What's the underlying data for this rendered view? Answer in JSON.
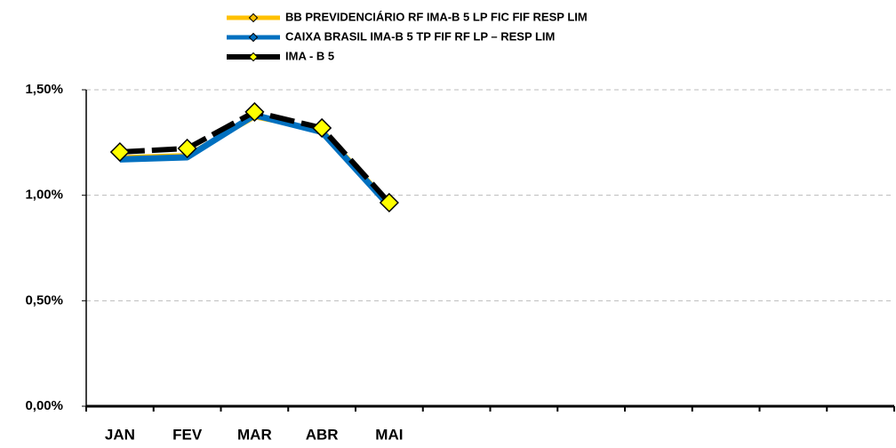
{
  "chart_data": {
    "type": "line",
    "categories": [
      "JAN",
      "FEV",
      "MAR",
      "ABR",
      "MAI",
      null,
      null,
      null,
      null,
      null,
      null,
      null
    ],
    "series": [
      {
        "name": "BB PREVIDENCIÁRIO RF IMA-B 5 LP FIC FIF RESP LIM",
        "color": "#ffc000",
        "values": [
          1.18,
          1.19,
          1.37,
          1.31,
          0.96,
          null,
          null,
          null,
          null,
          null,
          null,
          null
        ]
      },
      {
        "name": "CAIXA BRASIL IMA-B 5 TP FIF RF LP – RESP LIM",
        "color": "#0070c0",
        "values": [
          1.17,
          1.18,
          1.38,
          1.3,
          0.95,
          null,
          null,
          null,
          null,
          null,
          null,
          null
        ]
      },
      {
        "name": "IMA - B 5",
        "color": "#000000",
        "values": [
          1.205,
          1.222,
          1.395,
          1.319,
          0.965,
          null,
          null,
          null,
          null,
          null,
          null,
          null
        ]
      }
    ],
    "ylim": [
      0,
      1.5
    ],
    "yticks": [
      {
        "value": 0,
        "label": "0,00%"
      },
      {
        "value": 0.5,
        "label": "0,50%"
      },
      {
        "value": 1,
        "label": "1,00%"
      },
      {
        "value": 1.5,
        "label": "1,50%"
      }
    ],
    "grid": true,
    "legend": "top"
  }
}
